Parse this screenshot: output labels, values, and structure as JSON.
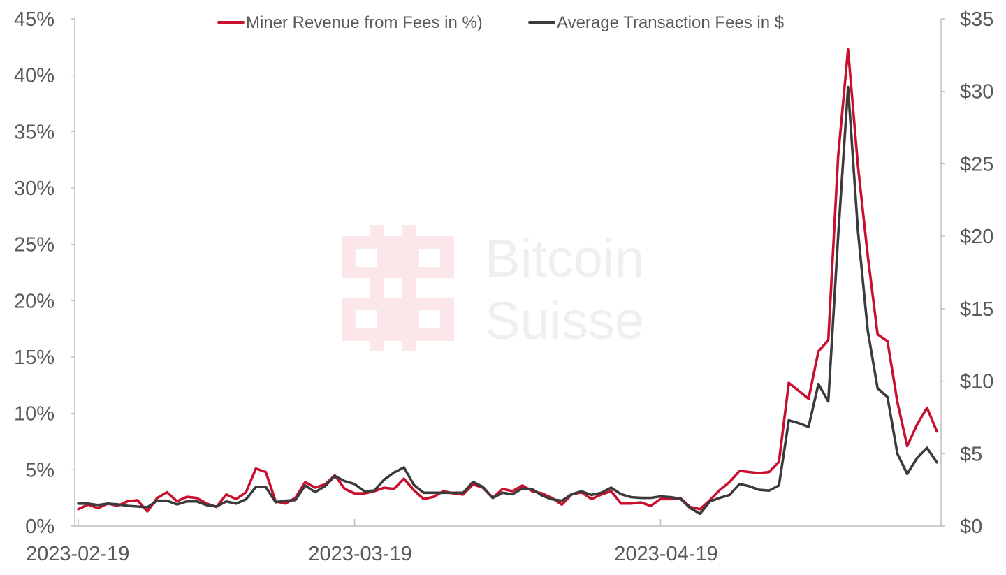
{
  "chart_data": {
    "type": "line",
    "title": "",
    "xlabel": "",
    "ylabel_left": "",
    "ylabel_right": "",
    "x_start": "2023-02-19",
    "x_step_days": 1,
    "x_tick_labels": [
      {
        "label": "2023-02-19",
        "day_index": 0
      },
      {
        "label": "2023-03-19",
        "day_index": 28
      },
      {
        "label": "2023-04-19",
        "day_index": 59
      }
    ],
    "ylim_left": [
      0,
      45
    ],
    "yticks_left": [
      {
        "value": 0,
        "label": "0%"
      },
      {
        "value": 5,
        "label": "5%"
      },
      {
        "value": 10,
        "label": "10%"
      },
      {
        "value": 15,
        "label": "15%"
      },
      {
        "value": 20,
        "label": "20%"
      },
      {
        "value": 25,
        "label": "25%"
      },
      {
        "value": 30,
        "label": "30%"
      },
      {
        "value": 35,
        "label": "35%"
      },
      {
        "value": 40,
        "label": "40%"
      },
      {
        "value": 45,
        "label": "45%"
      }
    ],
    "ylim_right": [
      0,
      35
    ],
    "yticks_right": [
      {
        "value": 0,
        "label": "$0"
      },
      {
        "value": 5,
        "label": "$5"
      },
      {
        "value": 10,
        "label": "$10"
      },
      {
        "value": 15,
        "label": "$15"
      },
      {
        "value": 20,
        "label": "$20"
      },
      {
        "value": 25,
        "label": "$25"
      },
      {
        "value": 30,
        "label": "$30"
      },
      {
        "value": 35,
        "label": "$35"
      }
    ],
    "legend_position": "top-center",
    "series": [
      {
        "name": "Miner Revenue from Fees in %)",
        "axis": "left",
        "color": "#c8102e",
        "values": [
          1.5,
          1.9,
          1.6,
          2.0,
          1.8,
          2.2,
          2.3,
          1.3,
          2.5,
          3.0,
          2.2,
          2.6,
          2.5,
          2.0,
          1.7,
          2.8,
          2.4,
          3.0,
          5.1,
          4.8,
          2.2,
          2.0,
          2.5,
          3.9,
          3.4,
          3.7,
          4.5,
          3.3,
          2.9,
          2.9,
          3.1,
          3.4,
          3.3,
          4.2,
          3.2,
          2.4,
          2.6,
          3.1,
          2.9,
          2.8,
          3.7,
          3.4,
          2.5,
          3.3,
          3.1,
          3.6,
          3.1,
          2.9,
          2.5,
          1.9,
          2.8,
          3.0,
          2.4,
          2.8,
          3.1,
          2.0,
          2.0,
          2.1,
          1.8,
          2.4,
          2.4,
          2.5,
          1.7,
          1.5,
          2.3,
          3.2,
          3.9,
          4.9,
          4.8,
          4.7,
          4.8,
          5.7,
          12.7,
          12.0,
          11.3,
          15.5,
          16.5,
          32.8,
          42.3,
          32.0,
          24.0,
          17.0,
          16.4,
          11.0,
          7.1,
          9.0,
          10.5,
          8.4
        ]
      },
      {
        "name": "Average Transaction Fees in $",
        "axis": "right",
        "color": "#3b3b3d",
        "values": [
          1.55,
          1.55,
          1.45,
          1.55,
          1.5,
          1.4,
          1.35,
          1.3,
          1.75,
          1.75,
          1.5,
          1.7,
          1.7,
          1.45,
          1.35,
          1.7,
          1.55,
          1.85,
          2.7,
          2.7,
          1.65,
          1.75,
          1.8,
          2.8,
          2.35,
          2.75,
          3.45,
          3.1,
          2.9,
          2.4,
          2.45,
          3.2,
          3.7,
          4.05,
          2.85,
          2.3,
          2.3,
          2.3,
          2.3,
          2.3,
          3.05,
          2.7,
          1.95,
          2.3,
          2.2,
          2.6,
          2.55,
          2.1,
          1.85,
          1.75,
          2.2,
          2.4,
          2.15,
          2.3,
          2.65,
          2.2,
          2.0,
          1.95,
          1.95,
          2.05,
          2.0,
          1.9,
          1.25,
          0.85,
          1.7,
          1.95,
          2.15,
          2.9,
          2.75,
          2.5,
          2.45,
          2.8,
          7.3,
          7.1,
          6.85,
          9.8,
          8.6,
          20.0,
          30.3,
          20.4,
          13.5,
          9.5,
          8.9,
          5.0,
          3.6,
          4.7,
          5.4,
          4.4
        ]
      }
    ]
  },
  "watermark": {
    "line1": "Bitcoin",
    "line2": "Suisse"
  }
}
